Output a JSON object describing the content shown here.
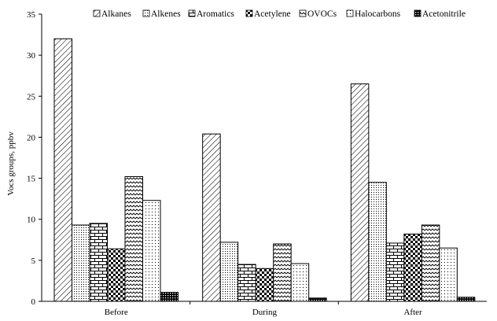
{
  "chart_data": {
    "type": "bar",
    "title": "",
    "xlabel": "",
    "ylabel": "Vocs groups, ppbv",
    "categories": [
      "Before",
      "During",
      "After"
    ],
    "ylim": [
      0,
      35
    ],
    "yticks": [
      0,
      5,
      10,
      15,
      20,
      25,
      30,
      35
    ],
    "grid": false,
    "legend_position": "top-right",
    "series": [
      {
        "name": "Alkanes",
        "pattern": "diagonal-hatch",
        "values": [
          32.0,
          20.4,
          26.5
        ]
      },
      {
        "name": "Alkenes",
        "pattern": "fine-dots",
        "values": [
          9.3,
          7.2,
          14.5
        ]
      },
      {
        "name": "Aromatics",
        "pattern": "brick",
        "values": [
          9.5,
          4.5,
          7.1
        ]
      },
      {
        "name": "Acetylene",
        "pattern": "checker",
        "values": [
          6.4,
          4.0,
          8.2
        ]
      },
      {
        "name": "OVOCs",
        "pattern": "wave",
        "values": [
          15.2,
          7.0,
          9.3
        ]
      },
      {
        "name": "Halocarbons",
        "pattern": "sparse-dots",
        "values": [
          12.3,
          4.6,
          6.5
        ]
      },
      {
        "name": "Acetonitrile",
        "pattern": "dense-checker",
        "values": [
          1.1,
          0.4,
          0.5
        ]
      }
    ]
  }
}
